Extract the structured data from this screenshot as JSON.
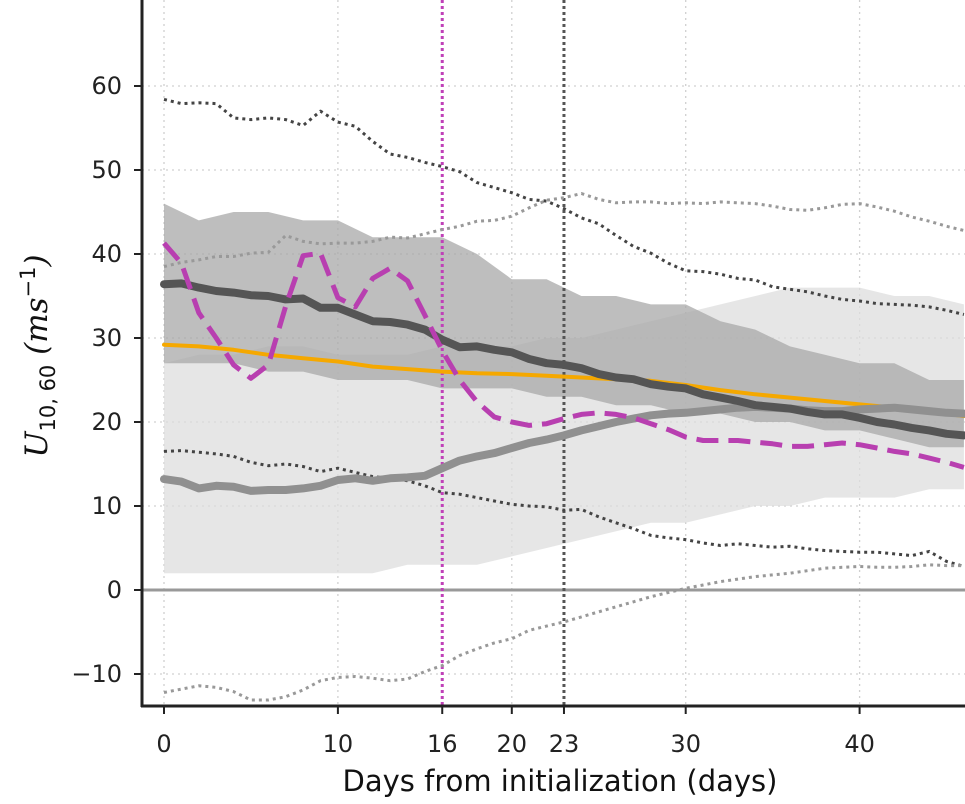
{
  "chart_data": {
    "type": "line",
    "title": "",
    "xlabel": "Days from initialization (days)",
    "ylabel": {
      "base": "U",
      "sub": "10, 60",
      "open": " (",
      "unit": "ms",
      "sup": "−1",
      "close": ")"
    },
    "xlim": [
      -1,
      46
    ],
    "ylim": [
      -14,
      69
    ],
    "x_ticks": [
      0,
      10,
      16,
      20,
      23,
      30,
      40
    ],
    "y_ticks": [
      -10,
      0,
      10,
      20,
      30,
      40,
      50,
      60
    ],
    "x_tick_labels": [
      "0",
      "10",
      "16",
      "20",
      "23",
      "30",
      "40"
    ],
    "y_tick_labels": [
      "−10",
      "0",
      "10",
      "20",
      "30",
      "40",
      "50",
      "60"
    ],
    "grid": true,
    "zero_line": 0,
    "vertical_markers": [
      {
        "x": 16,
        "color": "#c040b8"
      },
      {
        "x": 23,
        "color": "#555555"
      }
    ],
    "bands": [
      {
        "color": "#dedede",
        "x": [
          0,
          2,
          4,
          6,
          8,
          10,
          12,
          14,
          16,
          18,
          20,
          22,
          24,
          26,
          28,
          30,
          32,
          34,
          36,
          38,
          40,
          42,
          44,
          46
        ],
        "upper": [
          27,
          28,
          28,
          29,
          29,
          28,
          28,
          28,
          29,
          29,
          29,
          30,
          30,
          31,
          32,
          33,
          34,
          35,
          36,
          36,
          36,
          35,
          35,
          34
        ],
        "lower": [
          2,
          2,
          2,
          2,
          2,
          2,
          2,
          3,
          3,
          3,
          4,
          5,
          6,
          7,
          8,
          8,
          9,
          10,
          10,
          11,
          11,
          11,
          12,
          12
        ]
      },
      {
        "color": "#a8a8a8",
        "x": [
          0,
          2,
          4,
          6,
          8,
          10,
          12,
          14,
          16,
          18,
          20,
          22,
          24,
          26,
          28,
          30,
          32,
          34,
          36,
          38,
          40,
          42,
          44,
          46
        ],
        "upper": [
          46,
          44,
          45,
          45,
          44,
          44,
          42,
          42,
          42,
          40,
          37,
          37,
          35,
          35,
          34,
          34,
          32,
          31,
          29,
          28,
          27,
          27,
          25,
          25
        ],
        "lower": [
          27,
          27,
          27,
          26,
          26,
          25,
          25,
          25,
          24,
          24,
          24,
          23,
          23,
          22,
          22,
          21,
          21,
          20,
          20,
          19,
          19,
          18,
          17,
          17
        ]
      }
    ],
    "series": [
      {
        "color": "#f5a800",
        "style": "solid",
        "width": 4,
        "x": [
          0,
          2,
          4,
          6,
          8,
          10,
          12,
          14,
          16,
          18,
          20,
          22,
          24,
          26,
          28,
          30,
          32,
          34,
          36,
          38,
          40,
          42,
          44,
          46
        ],
        "values": [
          29.2,
          29.0,
          28.6,
          28.0,
          27.6,
          27.2,
          26.6,
          26.3,
          26.0,
          25.8,
          25.7,
          25.5,
          25.3,
          25.1,
          24.9,
          24.4,
          23.8,
          23.3,
          22.9,
          22.5,
          22.1,
          21.7,
          21.3,
          20.7
        ]
      },
      {
        "color": "#555555",
        "style": "solid",
        "width": 8,
        "x": [
          0,
          1,
          2,
          3,
          4,
          5,
          6,
          7,
          8,
          9,
          10,
          11,
          12,
          13,
          14,
          15,
          16,
          17,
          18,
          19,
          20,
          21,
          22,
          23,
          24,
          25,
          26,
          27,
          28,
          29,
          30,
          31,
          32,
          33,
          34,
          35,
          36,
          37,
          38,
          39,
          40,
          41,
          42,
          43,
          44,
          45,
          46
        ],
        "values": [
          36.4,
          36.5,
          36.0,
          35.6,
          35.4,
          35.1,
          35.0,
          34.6,
          34.7,
          33.6,
          33.6,
          32.8,
          32.0,
          31.9,
          31.6,
          31.0,
          29.8,
          28.9,
          29.0,
          28.6,
          28.3,
          27.5,
          27.0,
          26.8,
          26.4,
          25.7,
          25.3,
          25.1,
          24.5,
          24.2,
          24.0,
          23.3,
          22.9,
          22.5,
          22.0,
          21.8,
          21.6,
          21.2,
          20.9,
          20.9,
          20.5,
          20.0,
          19.7,
          19.3,
          19.0,
          18.6,
          18.4
        ]
      },
      {
        "color": "#909090",
        "style": "solid",
        "width": 8,
        "x": [
          0,
          1,
          2,
          3,
          4,
          5,
          6,
          7,
          8,
          9,
          10,
          11,
          12,
          13,
          14,
          15,
          16,
          17,
          18,
          19,
          20,
          21,
          22,
          23,
          24,
          25,
          26,
          27,
          28,
          29,
          30,
          31,
          32,
          33,
          34,
          35,
          36,
          37,
          38,
          39,
          40,
          41,
          42,
          43,
          44,
          45,
          46
        ],
        "values": [
          13.2,
          12.9,
          12.1,
          12.4,
          12.3,
          11.8,
          11.9,
          11.9,
          12.1,
          12.4,
          13.1,
          13.3,
          13.0,
          13.3,
          13.4,
          13.6,
          14.5,
          15.4,
          15.9,
          16.3,
          16.9,
          17.5,
          17.9,
          18.4,
          19.0,
          19.5,
          20.0,
          20.4,
          20.8,
          21.0,
          21.1,
          21.3,
          21.5,
          21.7,
          21.8,
          21.7,
          21.6,
          21.4,
          21.3,
          21.3,
          21.5,
          21.6,
          21.7,
          21.5,
          21.3,
          21.1,
          21.0
        ]
      },
      {
        "color": "#b83fb0",
        "style": "dashed",
        "width": 5,
        "x": [
          0,
          1,
          2,
          3,
          4,
          5,
          6,
          7,
          8,
          9,
          10,
          11,
          12,
          13,
          14,
          15,
          16,
          17,
          18,
          19,
          20,
          21,
          22,
          23,
          24,
          25,
          26,
          27,
          28,
          29,
          30,
          31,
          32,
          33,
          34,
          35,
          36,
          37,
          38,
          39,
          40,
          41,
          42,
          43,
          44,
          45,
          46
        ],
        "values": [
          41.3,
          38.9,
          33.0,
          30.0,
          26.8,
          25.2,
          26.8,
          33.8,
          39.8,
          40.1,
          34.8,
          33.7,
          37.1,
          38.3,
          36.8,
          32.7,
          28.5,
          25.0,
          22.4,
          20.6,
          20.0,
          19.6,
          19.8,
          20.4,
          20.9,
          21.1,
          20.9,
          20.5,
          19.8,
          19.1,
          18.2,
          17.8,
          17.8,
          17.8,
          17.6,
          17.4,
          17.1,
          17.1,
          17.3,
          17.5,
          17.3,
          16.9,
          16.5,
          16.2,
          15.7,
          15.2,
          14.6
        ]
      },
      {
        "color": "#444444",
        "style": "dotted",
        "width": 3,
        "x": [
          0,
          1,
          2,
          3,
          4,
          5,
          6,
          7,
          8,
          9,
          10,
          11,
          12,
          13,
          14,
          15,
          16,
          17,
          18,
          19,
          20,
          21,
          22,
          23,
          24,
          25,
          26,
          27,
          28,
          29,
          30,
          31,
          32,
          33,
          34,
          35,
          36,
          37,
          38,
          39,
          40,
          41,
          42,
          43,
          44,
          45,
          46
        ],
        "values": [
          58.4,
          57.9,
          58.0,
          57.9,
          56.2,
          56.0,
          56.2,
          56.0,
          55.3,
          57.0,
          55.7,
          55.2,
          53.4,
          51.9,
          51.5,
          50.9,
          50.4,
          49.8,
          48.5,
          47.9,
          47.3,
          46.5,
          46.3,
          45.4,
          44.3,
          43.6,
          42.2,
          40.9,
          40.1,
          38.9,
          38.0,
          37.9,
          37.6,
          37.1,
          36.9,
          36.1,
          35.8,
          35.5,
          35.0,
          34.6,
          34.4,
          34.1,
          34.0,
          33.9,
          33.7,
          33.3,
          32.8
        ]
      },
      {
        "color": "#444444",
        "style": "dotted",
        "width": 3,
        "x": [
          0,
          1,
          2,
          3,
          4,
          5,
          6,
          7,
          8,
          9,
          10,
          11,
          12,
          13,
          14,
          15,
          16,
          17,
          18,
          19,
          20,
          21,
          22,
          23,
          24,
          25,
          26,
          27,
          28,
          29,
          30,
          31,
          32,
          33,
          34,
          35,
          36,
          37,
          38,
          39,
          40,
          41,
          42,
          43,
          44,
          45,
          46
        ],
        "values": [
          16.5,
          16.6,
          16.4,
          16.2,
          15.9,
          15.2,
          14.8,
          15.0,
          14.7,
          14.1,
          14.5,
          14.0,
          13.5,
          13.3,
          13.0,
          12.4,
          11.6,
          11.4,
          11.0,
          10.6,
          10.2,
          10.0,
          9.9,
          9.5,
          9.6,
          8.7,
          8.0,
          7.3,
          6.5,
          6.2,
          6.0,
          5.6,
          5.3,
          5.5,
          5.3,
          5.1,
          5.2,
          4.9,
          4.7,
          4.6,
          4.5,
          4.5,
          4.3,
          4.1,
          4.6,
          3.4,
          2.8
        ]
      },
      {
        "color": "#999999",
        "style": "dotted",
        "width": 3,
        "x": [
          0,
          1,
          2,
          3,
          4,
          5,
          6,
          7,
          8,
          9,
          10,
          11,
          12,
          13,
          14,
          15,
          16,
          17,
          18,
          19,
          20,
          21,
          22,
          23,
          24,
          25,
          26,
          27,
          28,
          29,
          30,
          31,
          32,
          33,
          34,
          35,
          36,
          37,
          38,
          39,
          40,
          41,
          42,
          43,
          44,
          45,
          46
        ],
        "values": [
          38.5,
          39.0,
          39.3,
          39.7,
          39.7,
          40.1,
          40.2,
          42.2,
          41.5,
          41.2,
          41.3,
          41.3,
          41.5,
          42.0,
          41.9,
          42.4,
          42.9,
          43.3,
          43.9,
          44.0,
          44.5,
          45.5,
          46.4,
          46.7,
          47.2,
          46.5,
          46.1,
          46.2,
          46.2,
          46.0,
          46.1,
          46.0,
          46.2,
          46.1,
          46.0,
          45.7,
          45.3,
          45.2,
          45.5,
          45.9,
          46.0,
          45.6,
          45.1,
          44.4,
          43.9,
          43.3,
          42.8
        ]
      },
      {
        "color": "#999999",
        "style": "dotted",
        "width": 3,
        "x": [
          0,
          1,
          2,
          3,
          4,
          5,
          6,
          7,
          8,
          9,
          10,
          11,
          12,
          13,
          14,
          15,
          16,
          17,
          18,
          19,
          20,
          21,
          22,
          23,
          24,
          25,
          26,
          27,
          28,
          29,
          30,
          31,
          32,
          33,
          34,
          35,
          36,
          37,
          38,
          39,
          40,
          41,
          42,
          43,
          44,
          45,
          46
        ],
        "values": [
          -12.2,
          -11.8,
          -11.4,
          -11.6,
          -12.1,
          -13.1,
          -13.1,
          -12.7,
          -11.9,
          -10.8,
          -10.4,
          -10.3,
          -10.5,
          -10.8,
          -10.6,
          -9.7,
          -9.0,
          -7.8,
          -7.0,
          -6.3,
          -5.8,
          -4.8,
          -4.3,
          -3.8,
          -3.2,
          -2.6,
          -2.0,
          -1.4,
          -0.8,
          -0.3,
          0.2,
          0.6,
          1.0,
          1.3,
          1.6,
          1.8,
          2.0,
          2.3,
          2.6,
          2.7,
          2.8,
          2.7,
          2.7,
          2.8,
          3.0,
          2.9,
          2.9
        ]
      }
    ]
  }
}
